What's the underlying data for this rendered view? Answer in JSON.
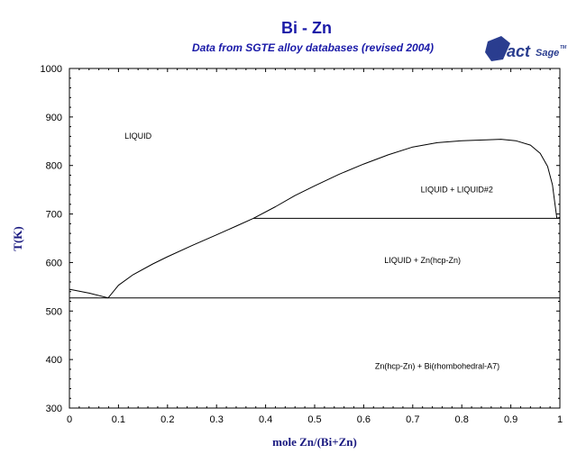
{
  "chart_data": {
    "type": "line",
    "title": "Bi - Zn",
    "subtitle": "Data from SGTE alloy databases (revised 2004)",
    "xlabel": "mole Zn/(Bi+Zn)",
    "ylabel": "T(K)",
    "xlim": [
      0,
      1
    ],
    "ylim": [
      300,
      1000
    ],
    "x_ticks": [
      "0",
      "0.1",
      "0.2",
      "0.3",
      "0.4",
      "0.5",
      "0.6",
      "0.7",
      "0.8",
      "0.9",
      "1"
    ],
    "y_ticks": [
      "300",
      "400",
      "500",
      "600",
      "700",
      "800",
      "900",
      "1000"
    ],
    "grid": false,
    "series": [
      {
        "values": [
          [
            0,
            545
          ],
          [
            0.04,
            537
          ],
          [
            0.079,
            527
          ]
        ]
      },
      {
        "values": [
          [
            0.079,
            527
          ],
          [
            0.1,
            553
          ],
          [
            0.13,
            575
          ],
          [
            0.17,
            597
          ],
          [
            0.2,
            612
          ],
          [
            0.25,
            635
          ],
          [
            0.3,
            657
          ],
          [
            0.34,
            675
          ],
          [
            0.375,
            691
          ],
          [
            0.42,
            715
          ],
          [
            0.46,
            738
          ],
          [
            0.5,
            758
          ],
          [
            0.55,
            782
          ],
          [
            0.6,
            803
          ],
          [
            0.65,
            822
          ],
          [
            0.7,
            838
          ],
          [
            0.75,
            847
          ],
          [
            0.8,
            851
          ],
          [
            0.85,
            853
          ],
          [
            0.88,
            854
          ],
          [
            0.91,
            851
          ],
          [
            0.94,
            842
          ],
          [
            0.96,
            825
          ],
          [
            0.975,
            798
          ],
          [
            0.985,
            760
          ],
          [
            0.99,
            720
          ],
          [
            0.994,
            691
          ]
        ]
      },
      {
        "values": [
          [
            0.375,
            691
          ],
          [
            1,
            691
          ]
        ]
      },
      {
        "values": [
          [
            0,
            527
          ],
          [
            1,
            527
          ]
        ]
      },
      {
        "values": [
          [
            0.994,
            691
          ],
          [
            1,
            693
          ]
        ]
      }
    ],
    "annotations": [
      {
        "text": "LIQUID",
        "x": 0.14,
        "y": 855
      },
      {
        "text": "LIQUID + LIQUID#2",
        "x": 0.79,
        "y": 745
      },
      {
        "text": "LIQUID + Zn(hcp-Zn)",
        "x": 0.72,
        "y": 599
      },
      {
        "text": "Zn(hcp-Zn) + Bi(rhombohedral-A7)",
        "x": 0.75,
        "y": 381
      }
    ]
  },
  "logo": {
    "text_main": "Fact",
    "text_sage": "Sage",
    "tm": "TM"
  },
  "colors": {
    "title": "#1a1aa8",
    "axis_label": "#1a1a80",
    "lines": "#000000",
    "logo": "#2a3d8f"
  }
}
